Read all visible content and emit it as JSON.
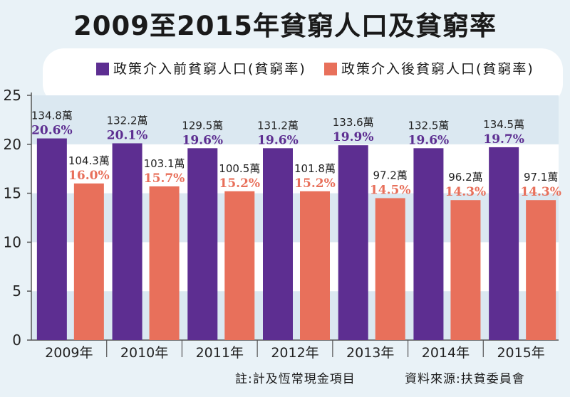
{
  "title": "2009至2015年貧窮人口及貧窮率",
  "legend": [
    {
      "label": "政策介入前貧窮人口(貧窮率)",
      "color": "#5d2e91"
    },
    {
      "label": "政策介入後貧窮人口(貧窮率)",
      "color": "#e8705b"
    }
  ],
  "footnote": "註:計及恆常現金項目",
  "source": "資料來源:扶貧委員會",
  "chart_data": {
    "type": "bar",
    "categories": [
      "2009年",
      "2010年",
      "2011年",
      "2012年",
      "2013年",
      "2014年",
      "2015年"
    ],
    "ylim": [
      0,
      25
    ],
    "yticks": [
      "0",
      "5",
      "10",
      "15",
      "20",
      "25"
    ],
    "grid": "bands",
    "legend_position": "top",
    "series": [
      {
        "name": "政策介入前貧窮人口(貧窮率)",
        "color": "#5d2e91",
        "label_color": "#5d2e91",
        "values": [
          20.6,
          20.1,
          19.6,
          19.6,
          19.9,
          19.6,
          19.7
        ],
        "rate_labels": [
          "20.6%",
          "20.1%",
          "19.6%",
          "19.6%",
          "19.9%",
          "19.6%",
          "19.7%"
        ],
        "population_labels": [
          "134.8萬",
          "132.2萬",
          "129.5萬",
          "131.2萬",
          "133.6萬",
          "132.5萬",
          "134.5萬"
        ]
      },
      {
        "name": "政策介入後貧窮人口(貧窮率)",
        "color": "#e8705b",
        "label_color": "#e8705b",
        "values": [
          16.0,
          15.7,
          15.2,
          15.2,
          14.5,
          14.3,
          14.3
        ],
        "rate_labels": [
          "16.0%",
          "15.7%",
          "15.2%",
          "15.2%",
          "14.5%",
          "14.3%",
          "14.3%"
        ],
        "population_labels": [
          "104.3萬",
          "103.1萬",
          "100.5萬",
          "101.8萬",
          "97.2萬",
          "96.2萬",
          "97.1萬"
        ]
      }
    ]
  }
}
